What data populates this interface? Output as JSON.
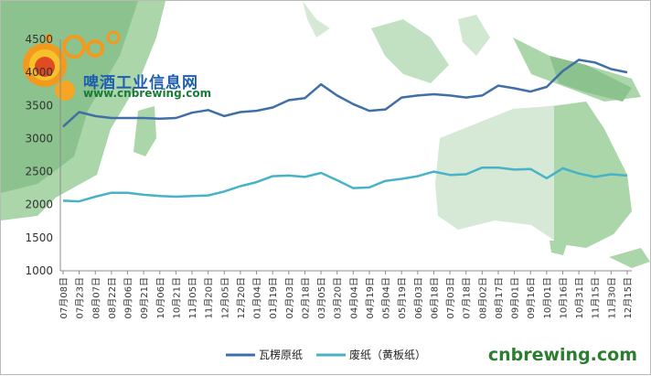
{
  "logo": {
    "name": "啤酒工业信息网",
    "url": "www.cnbrewing.com"
  },
  "watermark": "cnbrewing.com",
  "chart_data": {
    "type": "line",
    "title": "",
    "xlabel": "",
    "ylabel": "",
    "ylim": [
      1000,
      4500
    ],
    "yticks": [
      1000,
      1500,
      2000,
      2500,
      3000,
      3500,
      4000,
      4500
    ],
    "grid": false,
    "legend_position": "bottom",
    "x": [
      "07月08日",
      "07月23日",
      "08月07日",
      "08月22日",
      "09月06日",
      "09月21日",
      "10月06日",
      "10月21日",
      "11月05日",
      "11月20日",
      "12月05日",
      "12月20日",
      "01月04日",
      "01月19日",
      "02月03日",
      "02月18日",
      "03月05日",
      "03月20日",
      "04月04日",
      "04月19日",
      "05月04日",
      "05月19日",
      "06月03日",
      "06月18日",
      "07月03日",
      "07月18日",
      "08月02日",
      "08月17日",
      "09月01日",
      "09月16日",
      "10月01日",
      "10月16日",
      "10月31日",
      "11月15日",
      "11月30日",
      "12月15日"
    ],
    "series": [
      {
        "name": "瓦楞原纸",
        "color": "#3f6fa6",
        "values": [
          3180,
          3400,
          3340,
          3310,
          3310,
          3310,
          3300,
          3310,
          3390,
          3430,
          3340,
          3400,
          3420,
          3470,
          3580,
          3610,
          3820,
          3650,
          3520,
          3420,
          3440,
          3620,
          3650,
          3670,
          3650,
          3620,
          3650,
          3800,
          3760,
          3710,
          3780,
          4020,
          4190,
          4150,
          4050,
          4000
        ]
      },
      {
        "name": "废纸（黄板纸）",
        "color": "#48b3c6",
        "values": [
          2060,
          2050,
          2120,
          2180,
          2180,
          2150,
          2130,
          2120,
          2130,
          2140,
          2200,
          2280,
          2340,
          2430,
          2440,
          2420,
          2480,
          2370,
          2250,
          2260,
          2360,
          2390,
          2430,
          2500,
          2450,
          2460,
          2560,
          2560,
          2530,
          2540,
          2400,
          2550,
          2470,
          2420,
          2460,
          2440
        ]
      }
    ]
  }
}
